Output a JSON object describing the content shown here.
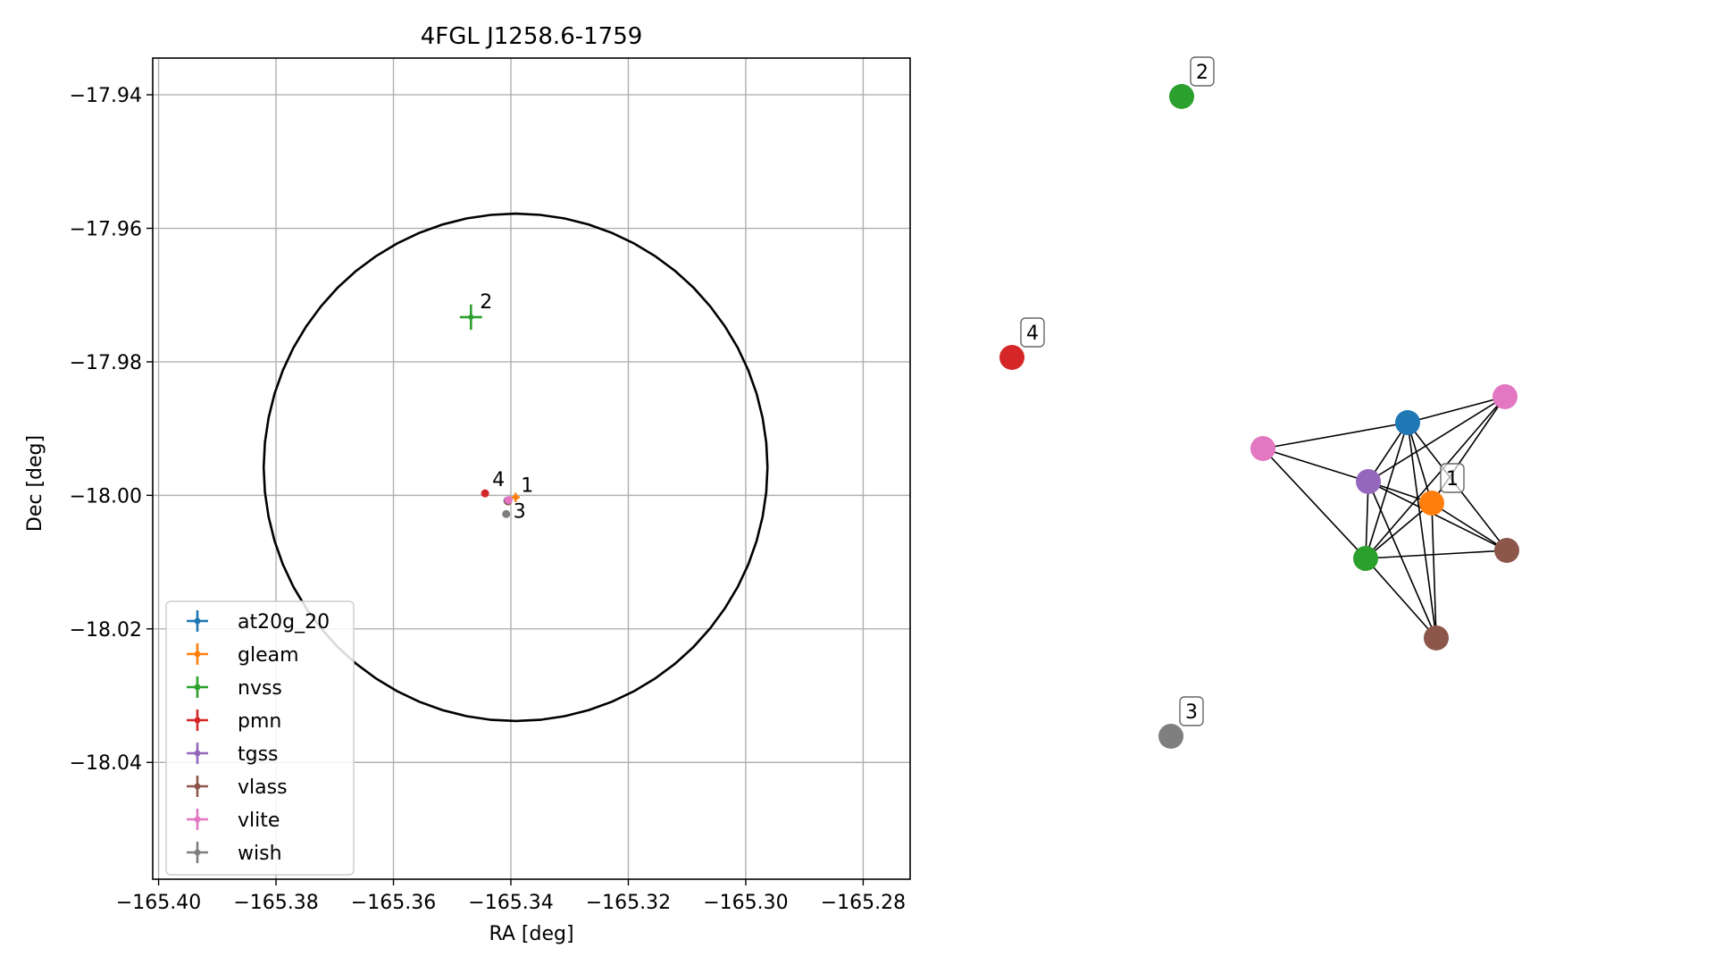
{
  "chart_data": [
    {
      "type": "scatter",
      "title": "4FGL J1258.6-1759",
      "xlabel": "RA [deg]",
      "ylabel": "Dec [deg]",
      "xlim": [
        -165.401,
        -165.272
      ],
      "ylim": [
        -18.0575,
        -17.9345
      ],
      "xticks": [
        -165.4,
        -165.38,
        -165.36,
        -165.34,
        -165.32,
        -165.3,
        -165.28
      ],
      "xtick_labels": [
        "−165.40",
        "−165.38",
        "−165.36",
        "−165.34",
        "−165.32",
        "−165.30",
        "−165.28"
      ],
      "yticks": [
        -17.94,
        -17.96,
        -17.98,
        -18.0,
        -18.02,
        -18.04
      ],
      "ytick_labels": [
        "−17.94",
        "−17.96",
        "−17.98",
        "−18.00",
        "−18.02",
        "−18.04"
      ],
      "grid": true,
      "legend_position": "lower-left",
      "circle": {
        "center": [
          -165.3392,
          -17.9958
        ],
        "radius_ra": 0.0429,
        "radius_dec": 0.038,
        "color": "#000000"
      },
      "series": [
        {
          "name": "at20g_20",
          "color": "#1f77b4",
          "points": []
        },
        {
          "name": "gleam",
          "color": "#ff7f0e",
          "points": [
            {
              "x": -165.3392,
              "y": -18.0003,
              "xerr": 0.0007,
              "yerr": 0.0007
            }
          ]
        },
        {
          "name": "nvss",
          "color": "#2ca02c",
          "points": [
            {
              "x": -165.3468,
              "y": -17.9733,
              "xerr": 0.0019,
              "yerr": 0.0019
            }
          ]
        },
        {
          "name": "pmn",
          "color": "#d62728",
          "points": [
            {
              "x": -165.3444,
              "y": -17.9997
            }
          ]
        },
        {
          "name": "tgss",
          "color": "#9467bd",
          "points": [
            {
              "x": -165.3406,
              "y": -18.0008
            }
          ]
        },
        {
          "name": "vlass",
          "color": "#8c564b",
          "points": [
            {
              "x": -165.3405,
              "y": -18.0009
            }
          ]
        },
        {
          "name": "vlite",
          "color": "#e377c2",
          "points": [
            {
              "x": -165.3404,
              "y": -18.0007
            }
          ]
        },
        {
          "name": "wish",
          "color": "#7f7f7f",
          "points": [
            {
              "x": -165.3408,
              "y": -18.0028
            }
          ]
        }
      ],
      "point_labels": [
        {
          "text": "1",
          "x": -165.3392,
          "y": -18.0003
        },
        {
          "text": "2",
          "x": -165.3468,
          "y": -17.9733
        },
        {
          "text": "3",
          "x": -165.3408,
          "y": -18.0028
        },
        {
          "text": "4",
          "x": -165.3444,
          "y": -17.9997
        }
      ]
    },
    {
      "type": "network",
      "nodes": [
        {
          "id": "n_green_top",
          "color": "#2ca02c",
          "label": "2"
        },
        {
          "id": "n_red",
          "color": "#d62728",
          "label": "4"
        },
        {
          "id": "n_gray",
          "color": "#7f7f7f",
          "label": "3"
        },
        {
          "id": "n_blue",
          "color": "#1f77b4"
        },
        {
          "id": "n_pink_r",
          "color": "#e377c2"
        },
        {
          "id": "n_pink_l",
          "color": "#e377c2"
        },
        {
          "id": "n_purple",
          "color": "#9467bd"
        },
        {
          "id": "n_orange",
          "color": "#ff7f0e",
          "label": "1"
        },
        {
          "id": "n_green",
          "color": "#2ca02c"
        },
        {
          "id": "n_brown_r",
          "color": "#8c564b"
        },
        {
          "id": "n_brown_b",
          "color": "#8c564b"
        }
      ],
      "edges": [
        [
          "n_blue",
          "n_pink_r"
        ],
        [
          "n_blue",
          "n_pink_l"
        ],
        [
          "n_blue",
          "n_purple"
        ],
        [
          "n_blue",
          "n_orange"
        ],
        [
          "n_blue",
          "n_green"
        ],
        [
          "n_blue",
          "n_brown_r"
        ],
        [
          "n_blue",
          "n_brown_b"
        ],
        [
          "n_pink_r",
          "n_purple"
        ],
        [
          "n_pink_r",
          "n_orange"
        ],
        [
          "n_pink_r",
          "n_green"
        ],
        [
          "n_pink_l",
          "n_purple"
        ],
        [
          "n_pink_l",
          "n_green"
        ],
        [
          "n_purple",
          "n_orange"
        ],
        [
          "n_purple",
          "n_green"
        ],
        [
          "n_purple",
          "n_brown_r"
        ],
        [
          "n_purple",
          "n_brown_b"
        ],
        [
          "n_orange",
          "n_green"
        ],
        [
          "n_orange",
          "n_brown_r"
        ],
        [
          "n_orange",
          "n_brown_b"
        ],
        [
          "n_green",
          "n_brown_r"
        ],
        [
          "n_green",
          "n_brown_b"
        ]
      ]
    }
  ]
}
